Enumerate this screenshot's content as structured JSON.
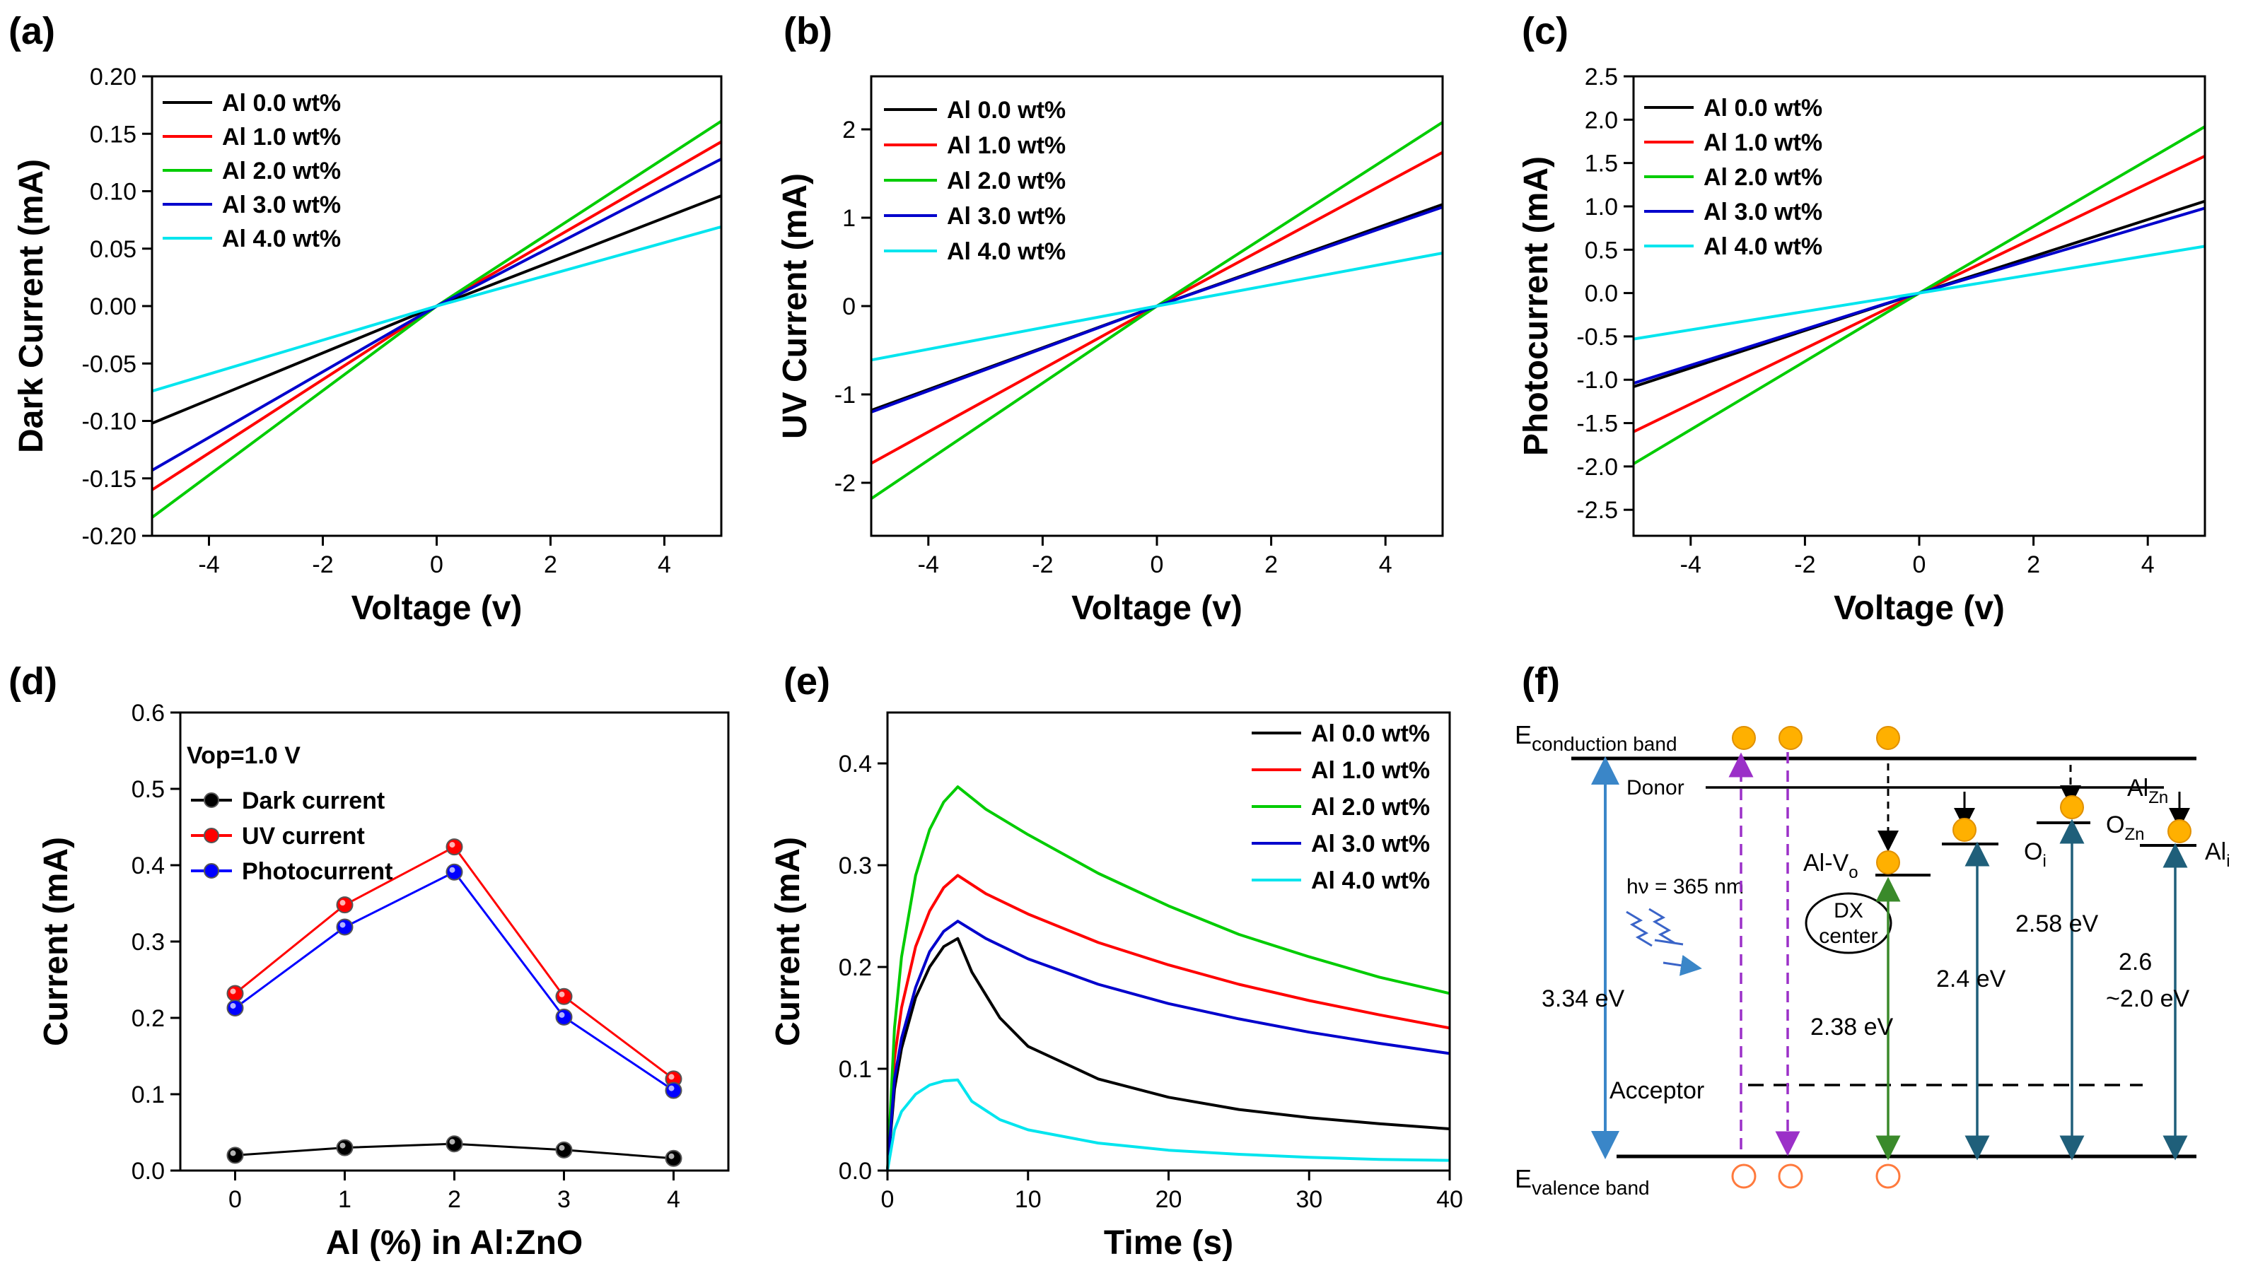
{
  "chart_data": [
    {
      "panel": "(a)",
      "type": "line",
      "xlabel": "Voltage (v)",
      "ylabel": "Dark Current (mA)",
      "xlim": [
        -5,
        5
      ],
      "ylim": [
        -0.2,
        0.2
      ],
      "xticks": [
        -4,
        -2,
        0,
        2,
        4
      ],
      "yticks": [
        -0.2,
        -0.15,
        -0.1,
        -0.05,
        0.0,
        0.05,
        0.1,
        0.15,
        0.2
      ],
      "ytick_labels": [
        "-0.20",
        "-0.15",
        "-0.10",
        "-0.05",
        "0.00",
        "0.05",
        "0.10",
        "0.15",
        "0.20"
      ],
      "legend_position": "top-left",
      "series": [
        {
          "name": "Al 0.0 wt%",
          "color": "#000000",
          "x": [
            -5,
            0,
            5
          ],
          "y": [
            -0.102,
            0,
            0.096
          ]
        },
        {
          "name": "Al 1.0 wt%",
          "color": "#ff0000",
          "x": [
            -5,
            0,
            5
          ],
          "y": [
            -0.16,
            0,
            0.143
          ]
        },
        {
          "name": "Al 2.0 wt%",
          "color": "#00cc00",
          "x": [
            -5,
            0,
            5
          ],
          "y": [
            -0.184,
            0,
            0.161
          ]
        },
        {
          "name": "Al 3.0 wt%",
          "color": "#0000cc",
          "x": [
            -5,
            0,
            5
          ],
          "y": [
            -0.143,
            0,
            0.128
          ]
        },
        {
          "name": "Al 4.0 wt%",
          "color": "#00e5ee",
          "x": [
            -5,
            0,
            5
          ],
          "y": [
            -0.074,
            0,
            0.069
          ]
        }
      ]
    },
    {
      "panel": "(b)",
      "type": "line",
      "xlabel": "Voltage (v)",
      "ylabel": "UV Current (mA)",
      "xlim": [
        -5,
        5
      ],
      "ylim": [
        -2.6,
        2.6
      ],
      "xticks": [
        -4,
        -2,
        0,
        2,
        4
      ],
      "yticks": [
        -2,
        -1,
        0,
        1,
        2
      ],
      "ytick_labels": [
        "-2",
        "-1",
        "0",
        "1",
        "2"
      ],
      "legend_position": "top-left",
      "series": [
        {
          "name": "Al 0.0 wt%",
          "color": "#000000",
          "x": [
            -5,
            0,
            5
          ],
          "y": [
            -1.18,
            0,
            1.15
          ]
        },
        {
          "name": "Al 1.0 wt%",
          "color": "#ff0000",
          "x": [
            -5,
            0,
            5
          ],
          "y": [
            -1.78,
            0,
            1.74
          ]
        },
        {
          "name": "Al 2.0 wt%",
          "color": "#00cc00",
          "x": [
            -5,
            0,
            5
          ],
          "y": [
            -2.18,
            0,
            2.08
          ]
        },
        {
          "name": "Al 3.0 wt%",
          "color": "#0000cc",
          "x": [
            -5,
            0,
            5
          ],
          "y": [
            -1.2,
            0,
            1.12
          ]
        },
        {
          "name": "Al 4.0 wt%",
          "color": "#00e5ee",
          "x": [
            -5,
            0,
            5
          ],
          "y": [
            -0.61,
            0,
            0.6
          ]
        }
      ]
    },
    {
      "panel": "(c)",
      "type": "line",
      "xlabel": "Voltage (v)",
      "ylabel": "Photocurrent (mA)",
      "xlim": [
        -5,
        5
      ],
      "ylim": [
        -2.8,
        2.5
      ],
      "xticks": [
        -4,
        -2,
        0,
        2,
        4
      ],
      "yticks": [
        -2.5,
        -2.0,
        -1.5,
        -1.0,
        -0.5,
        0.0,
        0.5,
        1.0,
        1.5,
        2.0,
        2.5
      ],
      "ytick_labels": [
        "-2.5",
        "-2.0",
        "-1.5",
        "-1.0",
        "-0.5",
        "0.0",
        "0.5",
        "1.0",
        "1.5",
        "2.0",
        "2.5"
      ],
      "legend_position": "top-left",
      "series": [
        {
          "name": "Al 0.0 wt%",
          "color": "#000000",
          "x": [
            -5,
            0,
            5
          ],
          "y": [
            -1.08,
            0,
            1.06
          ]
        },
        {
          "name": "Al 1.0 wt%",
          "color": "#ff0000",
          "x": [
            -5,
            0,
            5
          ],
          "y": [
            -1.6,
            0,
            1.58
          ]
        },
        {
          "name": "Al 2.0 wt%",
          "color": "#00cc00",
          "x": [
            -5,
            0,
            5
          ],
          "y": [
            -1.97,
            0,
            1.92
          ]
        },
        {
          "name": "Al 3.0 wt%",
          "color": "#0000cc",
          "x": [
            -5,
            0,
            5
          ],
          "y": [
            -1.04,
            0,
            0.98
          ]
        },
        {
          "name": "Al 4.0 wt%",
          "color": "#00e5ee",
          "x": [
            -5,
            0,
            5
          ],
          "y": [
            -0.53,
            0,
            0.54
          ]
        }
      ]
    },
    {
      "panel": "(d)",
      "type": "line",
      "xlabel": "Al (%) in Al:ZnO",
      "ylabel": "Current (mA)",
      "xlim": [
        -0.5,
        4.5
      ],
      "ylim": [
        0.0,
        0.6
      ],
      "xticks": [
        0,
        1,
        2,
        3,
        4
      ],
      "yticks": [
        0.0,
        0.1,
        0.2,
        0.3,
        0.4,
        0.5,
        0.6
      ],
      "ytick_labels": [
        "0.0",
        "0.1",
        "0.2",
        "0.3",
        "0.4",
        "0.5",
        "0.6"
      ],
      "annotation": "Vop=1.0 V",
      "legend_position": "top-left",
      "series": [
        {
          "name": "Dark current",
          "color": "#000000",
          "x": [
            0,
            1,
            2,
            3,
            4
          ],
          "y": [
            0.02,
            0.03,
            0.035,
            0.027,
            0.016
          ]
        },
        {
          "name": "UV current",
          "color": "#ff0000",
          "x": [
            0,
            1,
            2,
            3,
            4
          ],
          "y": [
            0.232,
            0.348,
            0.424,
            0.228,
            0.12
          ]
        },
        {
          "name": "Photocurrent",
          "color": "#0000ff",
          "x": [
            0,
            1,
            2,
            3,
            4
          ],
          "y": [
            0.213,
            0.319,
            0.391,
            0.201,
            0.105
          ]
        }
      ]
    },
    {
      "panel": "(e)",
      "type": "line",
      "xlabel": "Time (s)",
      "ylabel": "Current (mA)",
      "xlim": [
        0,
        40
      ],
      "ylim": [
        0.0,
        0.45
      ],
      "xticks": [
        0,
        10,
        20,
        30,
        40
      ],
      "yticks": [
        0.0,
        0.1,
        0.2,
        0.3,
        0.4
      ],
      "ytick_labels": [
        "0.0",
        "0.1",
        "0.2",
        "0.3",
        "0.4"
      ],
      "legend_position": "top-right",
      "series": [
        {
          "name": "Al 0.0 wt%",
          "color": "#000000",
          "x": [
            0,
            0.5,
            1,
            2,
            3,
            4,
            5,
            6,
            8,
            10,
            15,
            20,
            25,
            30,
            35,
            40
          ],
          "y": [
            0.0,
            0.08,
            0.12,
            0.17,
            0.2,
            0.22,
            0.228,
            0.195,
            0.15,
            0.122,
            0.09,
            0.072,
            0.06,
            0.052,
            0.046,
            0.041
          ]
        },
        {
          "name": "Al 1.0 wt%",
          "color": "#ff0000",
          "x": [
            0,
            0.5,
            1,
            2,
            3,
            4,
            5,
            7,
            10,
            15,
            20,
            25,
            30,
            35,
            40
          ],
          "y": [
            0.0,
            0.11,
            0.16,
            0.22,
            0.255,
            0.278,
            0.29,
            0.272,
            0.252,
            0.224,
            0.202,
            0.183,
            0.167,
            0.153,
            0.14
          ]
        },
        {
          "name": "Al 2.0 wt%",
          "color": "#00cc00",
          "x": [
            0,
            0.5,
            1,
            2,
            3,
            4,
            5,
            7,
            10,
            15,
            20,
            25,
            30,
            35,
            40
          ],
          "y": [
            0.0,
            0.14,
            0.21,
            0.29,
            0.335,
            0.362,
            0.377,
            0.355,
            0.33,
            0.292,
            0.26,
            0.232,
            0.21,
            0.19,
            0.174
          ]
        },
        {
          "name": "Al 3.0 wt%",
          "color": "#0000cc",
          "x": [
            0,
            0.5,
            1,
            2,
            3,
            4,
            5,
            7,
            10,
            15,
            20,
            25,
            30,
            35,
            40
          ],
          "y": [
            0.0,
            0.09,
            0.13,
            0.18,
            0.215,
            0.235,
            0.245,
            0.228,
            0.208,
            0.183,
            0.164,
            0.149,
            0.136,
            0.125,
            0.115
          ]
        },
        {
          "name": "Al 4.0 wt%",
          "color": "#00e5ee",
          "x": [
            0,
            0.5,
            1,
            2,
            3,
            4,
            5,
            6,
            8,
            10,
            15,
            20,
            25,
            30,
            35,
            40
          ],
          "y": [
            0.0,
            0.04,
            0.058,
            0.075,
            0.084,
            0.088,
            0.089,
            0.068,
            0.05,
            0.04,
            0.027,
            0.02,
            0.016,
            0.013,
            0.011,
            0.01
          ]
        }
      ]
    }
  ],
  "panel_letters": [
    "(a)",
    "(b)",
    "(c)",
    "(d)",
    "(e)",
    "(f)"
  ],
  "diagram": {
    "panel": "(f)",
    "conduction_band_main": "E",
    "conduction_band_sub": "conduction band",
    "valence_band_main": "E",
    "valence_band_sub": "valence band",
    "donor": "Donor",
    "acceptor": "Acceptor",
    "al_zn_main": "Al",
    "al_zn_sub": "Zn",
    "al_vo_main": "Al-V",
    "al_vo_sub": "o",
    "oi_main": "O",
    "oi_sub": "i",
    "ozn_main": "O",
    "ozn_sub": "Zn",
    "ali_main": "Al",
    "ali_sub": "i",
    "dx_line1": "DX",
    "dx_line2": "center",
    "photon": "hν = 365 nm",
    "gap_total": "3.34 eV",
    "gap_dx": "2.38 eV",
    "gap_oi": "2.4 eV",
    "gap_ozn": "2.58 eV",
    "gap_ali_1": "2.6",
    "gap_ali_2": "~2.0 eV",
    "colors": {
      "electron": "#ffb000",
      "hole": "#ff7a3d",
      "total_gap": "#3a86c8",
      "dx": "#3a8a2a",
      "defect": "#1f5f7a",
      "excitation": "#9b30c8",
      "photon": "#3a64c8"
    }
  }
}
